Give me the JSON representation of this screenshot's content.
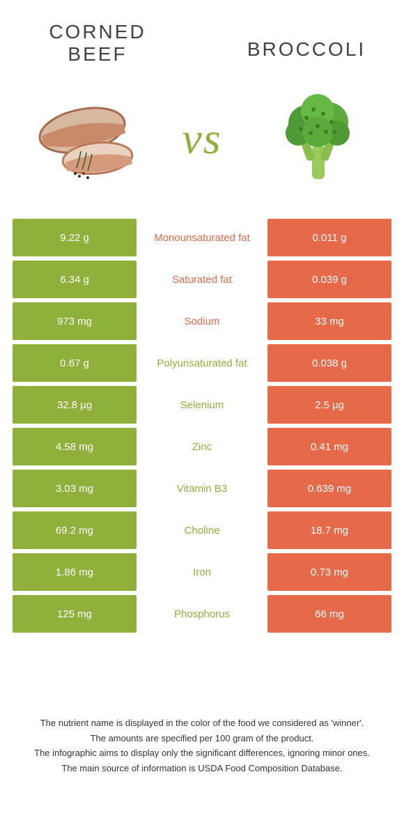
{
  "colors": {
    "left": "#8fb13b",
    "right": "#e66a49",
    "mid_bg": "#ffffff",
    "text": "#333333",
    "title": "#414244"
  },
  "header": {
    "left_title": "Corned beef",
    "right_title": "Broccoli",
    "vs": "vs"
  },
  "nutrients": [
    {
      "label": "Monounsaturated fat",
      "left": "9.22 g",
      "right": "0.011 g",
      "winner": "right"
    },
    {
      "label": "Saturated fat",
      "left": "6.34 g",
      "right": "0.039 g",
      "winner": "right"
    },
    {
      "label": "Sodium",
      "left": "973 mg",
      "right": "33 mg",
      "winner": "right"
    },
    {
      "label": "Polyunsaturated fat",
      "left": "0.67 g",
      "right": "0.038 g",
      "winner": "left"
    },
    {
      "label": "Selenium",
      "left": "32.8 µg",
      "right": "2.5 µg",
      "winner": "left"
    },
    {
      "label": "Zinc",
      "left": "4.58 mg",
      "right": "0.41 mg",
      "winner": "left"
    },
    {
      "label": "Vitamin B3",
      "left": "3.03 mg",
      "right": "0.639 mg",
      "winner": "left"
    },
    {
      "label": "Choline",
      "left": "69.2 mg",
      "right": "18.7 mg",
      "winner": "left"
    },
    {
      "label": "Iron",
      "left": "1.86 mg",
      "right": "0.73 mg",
      "winner": "left"
    },
    {
      "label": "Phosphorus",
      "left": "125 mg",
      "right": "66 mg",
      "winner": "left"
    }
  ],
  "footer": [
    "The nutrient name is displayed in the color of the food we considered as 'winner'.",
    "The amounts are specified per 100 gram of the product.",
    "The infographic aims to display only the significant differences, ignoring minor ones.",
    "The main source of information is USDA Food Composition Database."
  ]
}
